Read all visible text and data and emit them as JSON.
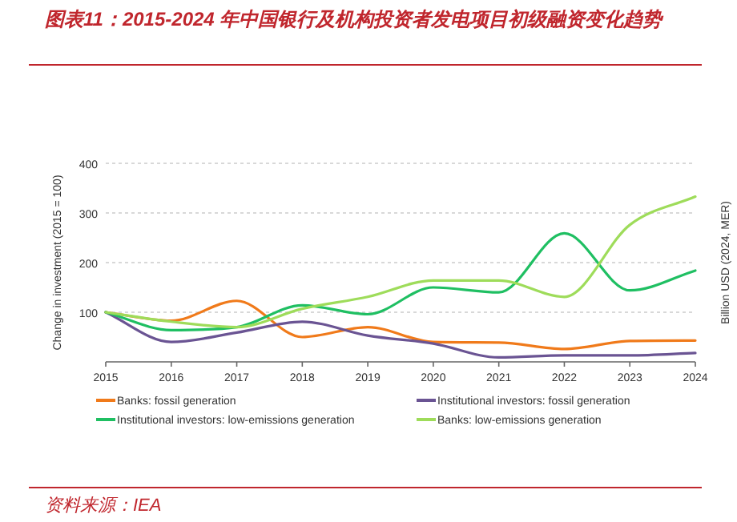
{
  "chart_data": {
    "type": "line",
    "title": "图表11：2015-2024 年中国银行及机构投资者发电项目初级融资变化趋势",
    "ylabel": "Change in investment (2015 = 100)",
    "y2label": "Billion USD (2024, MER)",
    "annotations": [
      "资料来源：IEA"
    ],
    "x": [
      2015,
      2016,
      2017,
      2018,
      2019,
      2020,
      2021,
      2022,
      2023,
      2024
    ],
    "xlim": [
      2015,
      2024
    ],
    "xticks": [
      2015,
      2016,
      2017,
      2018,
      2019,
      2020,
      2021,
      2022,
      2023,
      2024
    ],
    "ylim": [
      0,
      400
    ],
    "yticks": [
      100,
      200,
      300,
      400
    ],
    "grid": "y",
    "legend": "bottom",
    "marker": "none",
    "line_style": "solid",
    "series": [
      {
        "name": "Banks: fossil generation",
        "color": "#f07a1a",
        "values": [
          100,
          83,
          123,
          50,
          70,
          40,
          39,
          26,
          42,
          43
        ]
      },
      {
        "name": "Institutional investors: fossil generation",
        "color": "#6a5493",
        "values": [
          100,
          40,
          59,
          81,
          53,
          37,
          9,
          13,
          13,
          18
        ]
      },
      {
        "name": "Institutional investors: low-emissions generation",
        "color": "#1fbf62",
        "values": [
          100,
          64,
          70,
          114,
          96,
          150,
          140,
          259,
          144,
          184
        ]
      },
      {
        "name": "Banks: low-emissions generation",
        "color": "#9edc5a",
        "values": [
          100,
          81,
          70,
          107,
          131,
          164,
          164,
          131,
          276,
          333
        ]
      }
    ]
  }
}
